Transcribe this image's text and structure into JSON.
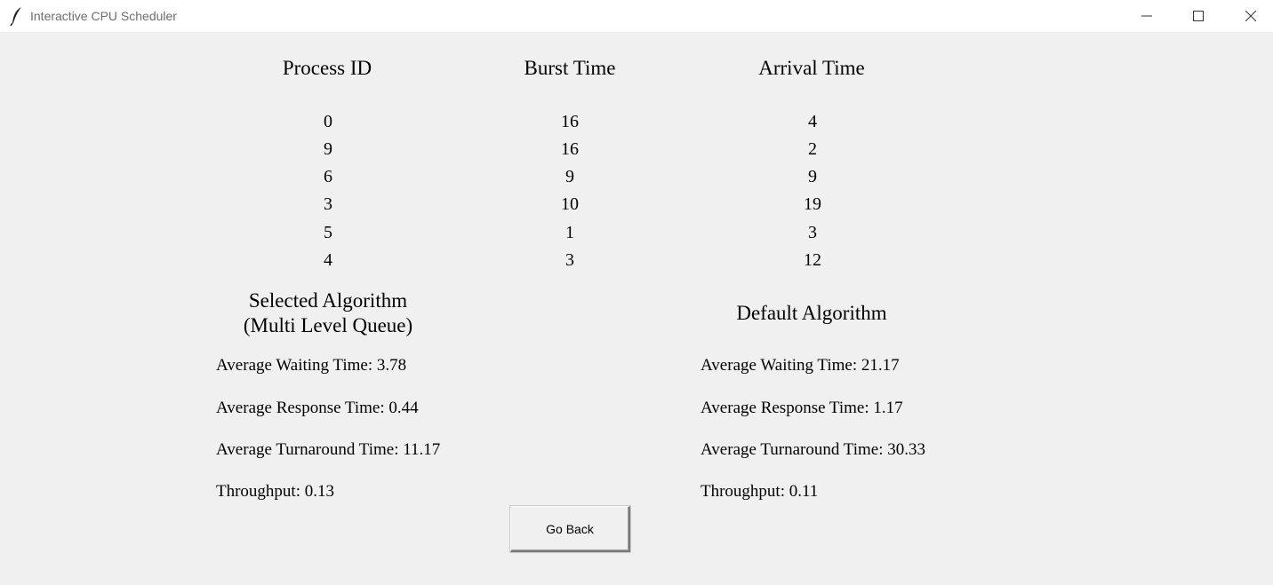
{
  "window": {
    "title": "Interactive CPU Scheduler",
    "icon": "feather-icon"
  },
  "table": {
    "headers": [
      "Process ID",
      "Burst Time",
      "Arrival Time"
    ],
    "rows": [
      [
        "0",
        "16",
        "4"
      ],
      [
        "9",
        "16",
        "2"
      ],
      [
        "6",
        "9",
        "9"
      ],
      [
        "3",
        "10",
        "19"
      ],
      [
        "5",
        "1",
        "3"
      ],
      [
        "4",
        "3",
        "12"
      ]
    ]
  },
  "selected": {
    "title_line1": "Selected Algorithm",
    "title_line2": "(Multi Level Queue)",
    "avg_waiting": "Average Waiting Time: 3.78",
    "avg_response": "Average Response Time: 0.44",
    "avg_turnaround": "Average Turnaround Time: 11.17",
    "throughput": "Throughput: 0.13"
  },
  "default": {
    "title": "Default Algorithm",
    "avg_waiting": "Average Waiting Time: 21.17",
    "avg_response": "Average Response Time: 1.17",
    "avg_turnaround": "Average Turnaround Time: 30.33",
    "throughput": "Throughput: 0.11"
  },
  "buttons": {
    "go_back": "Go Back"
  }
}
